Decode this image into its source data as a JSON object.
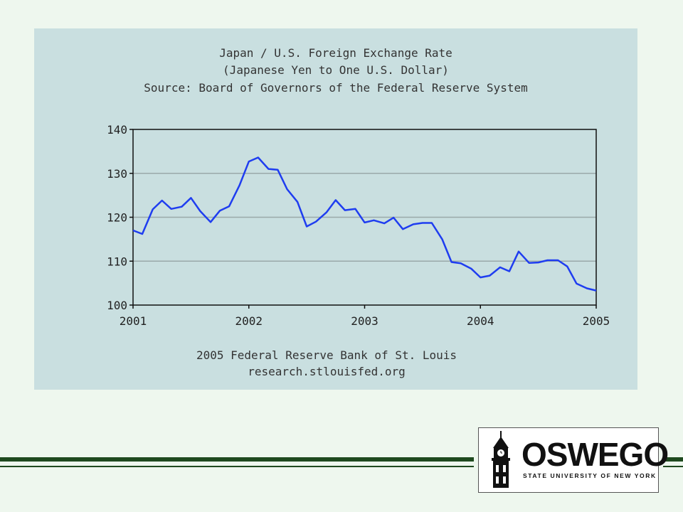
{
  "chart_data": {
    "type": "line",
    "title": "Japan / U.S. Foreign Exchange Rate",
    "subtitle": "(Japanese Yen to One U.S. Dollar)",
    "source": "Source: Board of Governors of the Federal Reserve System",
    "footer_line1": "2005 Federal Reserve Bank of St. Louis",
    "footer_line2": "research.stlouisfed.org",
    "xlim": [
      2001,
      2005
    ],
    "ylim": [
      100,
      140
    ],
    "x_ticks": [
      "2001",
      "2002",
      "2003",
      "2004",
      "2005"
    ],
    "y_ticks": [
      "100",
      "110",
      "120",
      "130",
      "140"
    ],
    "grid": true,
    "line_color": "#1f3df0",
    "series": [
      {
        "values": [
          [
            2001.0,
            117.0
          ],
          [
            2001.08,
            116.2
          ],
          [
            2001.17,
            121.8
          ],
          [
            2001.25,
            123.8
          ],
          [
            2001.33,
            121.9
          ],
          [
            2001.42,
            122.4
          ],
          [
            2001.5,
            124.4
          ],
          [
            2001.58,
            121.4
          ],
          [
            2001.67,
            118.9
          ],
          [
            2001.75,
            121.5
          ],
          [
            2001.83,
            122.5
          ],
          [
            2001.92,
            127.3
          ],
          [
            2002.0,
            132.7
          ],
          [
            2002.08,
            133.6
          ],
          [
            2002.17,
            131.0
          ],
          [
            2002.25,
            130.8
          ],
          [
            2002.33,
            126.4
          ],
          [
            2002.42,
            123.5
          ],
          [
            2002.5,
            117.9
          ],
          [
            2002.58,
            119.0
          ],
          [
            2002.67,
            121.1
          ],
          [
            2002.75,
            123.9
          ],
          [
            2002.83,
            121.6
          ],
          [
            2002.92,
            121.9
          ],
          [
            2003.0,
            118.8
          ],
          [
            2003.08,
            119.3
          ],
          [
            2003.17,
            118.6
          ],
          [
            2003.25,
            119.9
          ],
          [
            2003.33,
            117.3
          ],
          [
            2003.42,
            118.4
          ],
          [
            2003.5,
            118.7
          ],
          [
            2003.58,
            118.7
          ],
          [
            2003.67,
            115.0
          ],
          [
            2003.75,
            109.8
          ],
          [
            2003.83,
            109.5
          ],
          [
            2003.92,
            108.3
          ],
          [
            2004.0,
            106.3
          ],
          [
            2004.08,
            106.7
          ],
          [
            2004.17,
            108.6
          ],
          [
            2004.25,
            107.7
          ],
          [
            2004.33,
            112.2
          ],
          [
            2004.42,
            109.6
          ],
          [
            2004.5,
            109.7
          ],
          [
            2004.58,
            110.2
          ],
          [
            2004.67,
            110.2
          ],
          [
            2004.75,
            108.8
          ],
          [
            2004.83,
            104.9
          ],
          [
            2004.92,
            103.8
          ],
          [
            2005.0,
            103.3
          ]
        ]
      }
    ]
  },
  "logo": {
    "wordmark": "OSWEGO",
    "tagline": "STATE UNIVERSITY OF NEW YORK"
  }
}
